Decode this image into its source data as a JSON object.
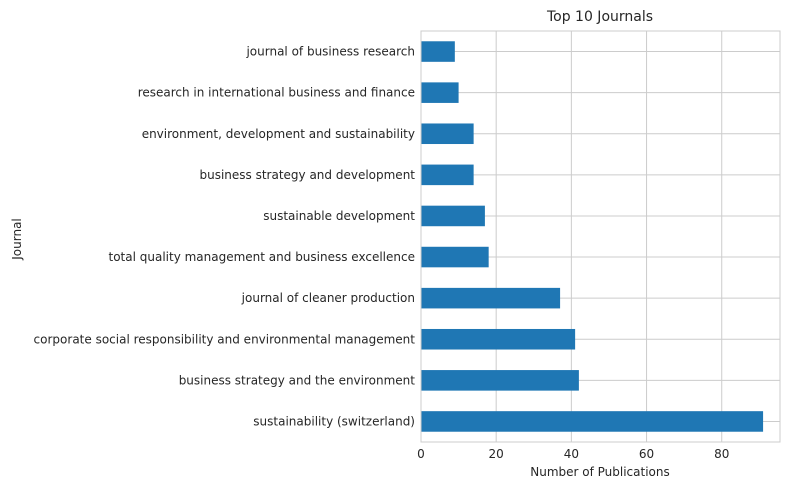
{
  "chart_data": {
    "type": "bar",
    "orientation": "horizontal",
    "title": "Top 10 Journals",
    "xlabel": "Number of Publications",
    "ylabel": "Journal",
    "xlim": [
      0,
      95.5
    ],
    "xticks": [
      0,
      20,
      40,
      60,
      80
    ],
    "grid": true,
    "bar_color": "#1f77b4",
    "categories": [
      "journal of business research",
      "research in international business and finance",
      "environment, development and sustainability",
      "business strategy and development",
      "sustainable development",
      "total quality management and business excellence",
      "journal of cleaner production",
      "corporate social responsibility and environmental management",
      "business strategy and the environment",
      "sustainability (switzerland)"
    ],
    "values": [
      9,
      10,
      14,
      14,
      17,
      18,
      37,
      41,
      42,
      91
    ]
  }
}
